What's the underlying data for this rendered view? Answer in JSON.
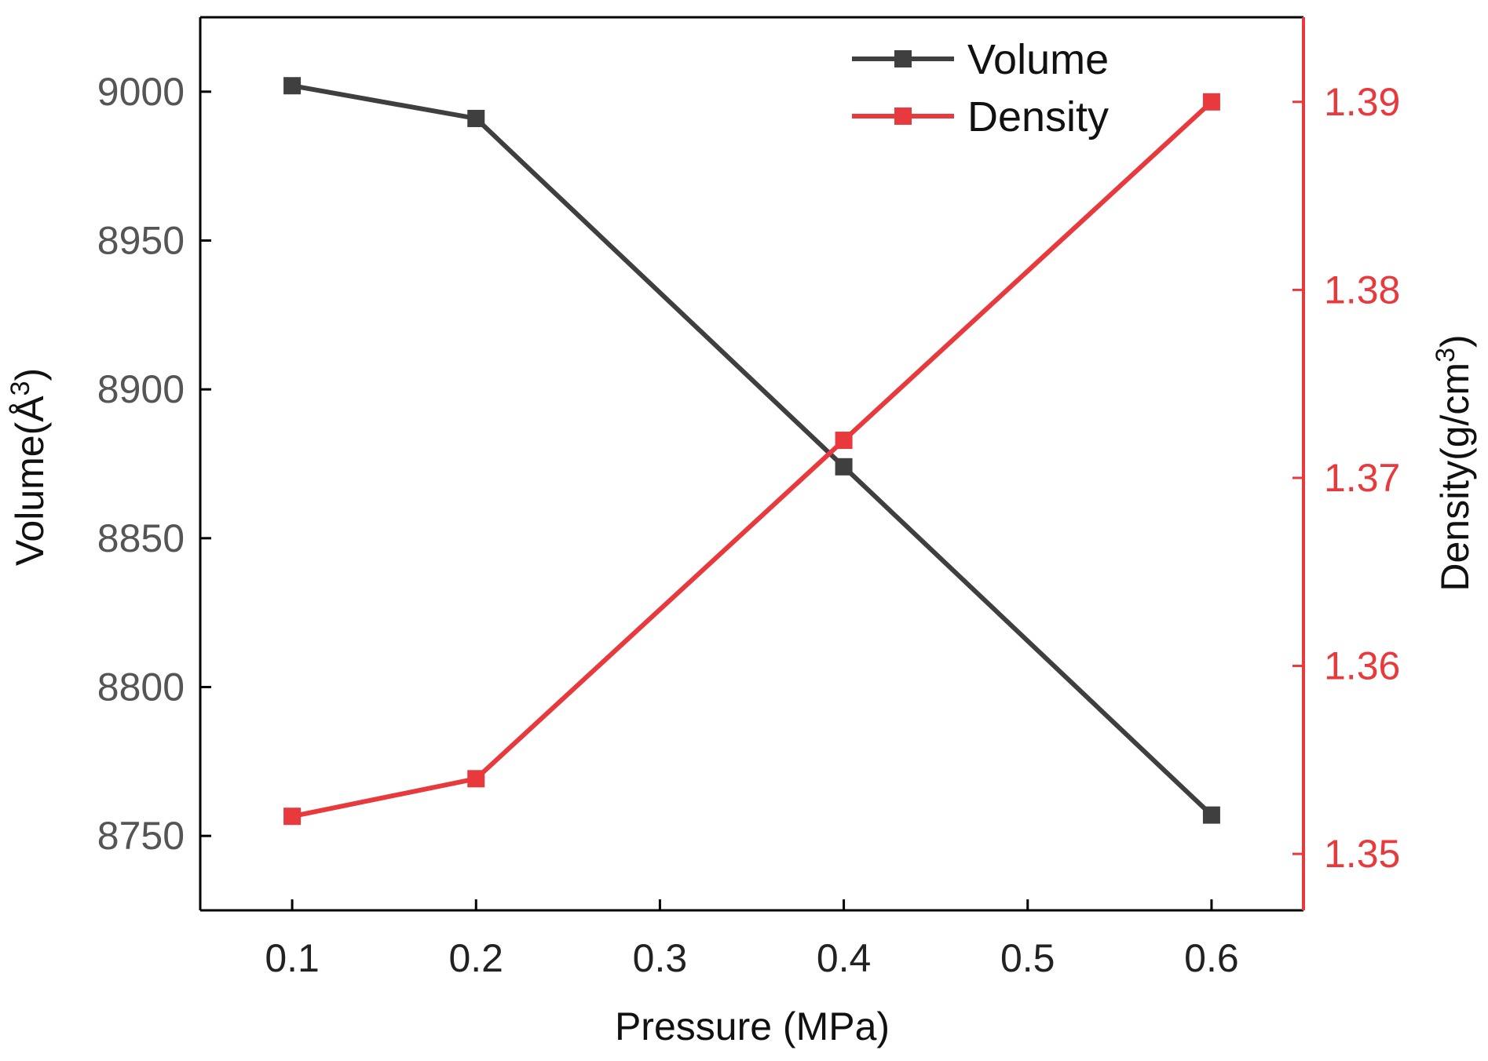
{
  "chart_data": {
    "type": "line",
    "x": [
      0.1,
      0.2,
      0.4,
      0.6
    ],
    "xlabel": "Pressure (MPa)",
    "xlim": [
      0.05,
      0.65
    ],
    "xticks": [
      "0.1",
      "0.2",
      "0.3",
      "0.4",
      "0.5",
      "0.6"
    ],
    "xtick_values": [
      0.1,
      0.2,
      0.3,
      0.4,
      0.5,
      0.6
    ],
    "ylabel_left_main": "Volume(Å",
    "ylabel_left_sup": "3",
    "ylabel_left_close": ")",
    "ylim_left": [
      8725,
      9025
    ],
    "yticks_left": [
      "8750",
      "8800",
      "8850",
      "8900",
      "8950",
      "9000"
    ],
    "ytick_values_left": [
      8750,
      8800,
      8850,
      8900,
      8950,
      9000
    ],
    "ylabel_right_main": "Density(g/cm",
    "ylabel_right_sup": "3",
    "ylabel_right_close": ")",
    "ylim_right": [
      1.347,
      1.3945
    ],
    "yticks_right": [
      "1.35",
      "1.36",
      "1.37",
      "1.38",
      "1.39"
    ],
    "ytick_values_right": [
      1.35,
      1.36,
      1.37,
      1.38,
      1.39
    ],
    "grid": false,
    "legend_position": "top-right",
    "series": [
      {
        "name": "Volume",
        "axis": "left",
        "color": "#3f3f3f",
        "marker": "square",
        "values": [
          9002,
          8991,
          8874,
          8757
        ]
      },
      {
        "name": "Density",
        "axis": "right",
        "color": "#e8393c",
        "marker": "square",
        "values": [
          1.352,
          1.354,
          1.372,
          1.39
        ]
      }
    ],
    "colors": {
      "frame": "#000000",
      "right_axis": "#e8393c",
      "left_tick_text": "#555555"
    }
  }
}
